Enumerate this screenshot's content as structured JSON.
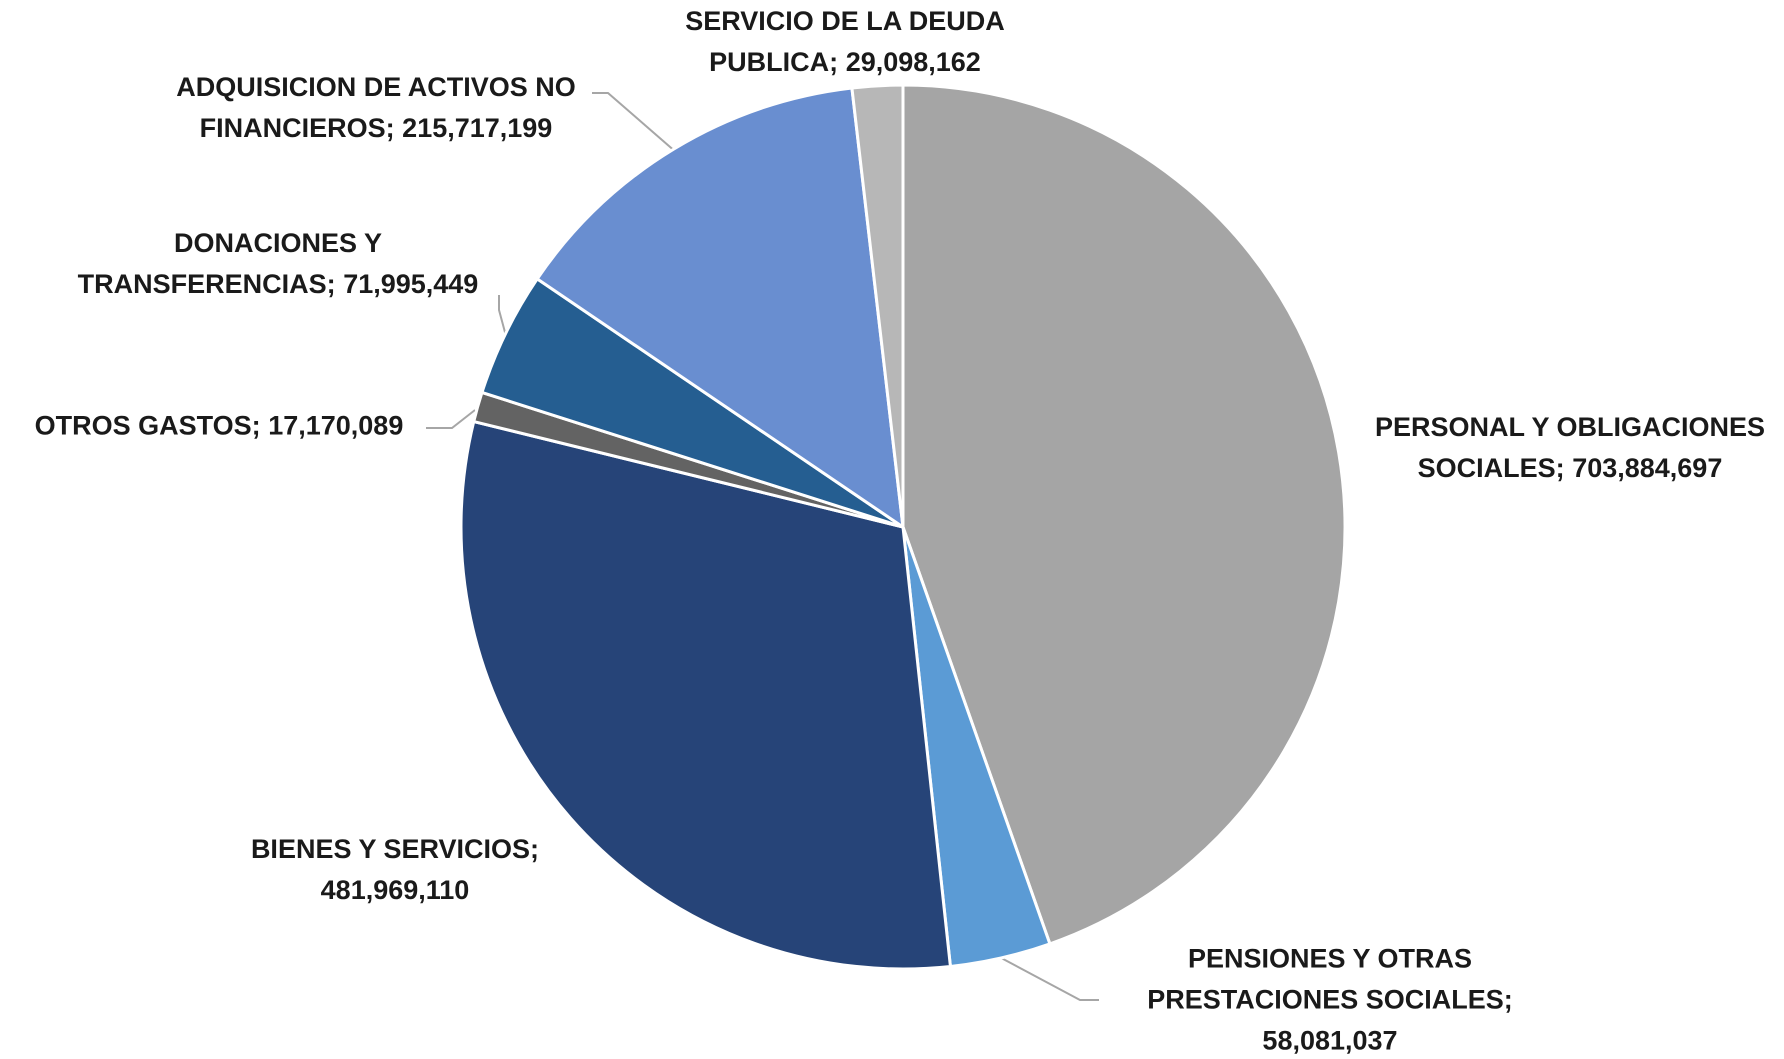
{
  "chart_data": {
    "type": "pie",
    "categories": [
      "PERSONAL Y OBLIGACIONES SOCIALES;",
      "PENSIONES Y OTRAS PRESTACIONES SOCIALES;",
      "BIENES Y SERVICIOS;",
      "OTROS GASTOS;",
      "DONACIONES Y TRANSFERENCIAS;",
      "ADQUISICION DE ACTIVOS NO FINANCIEROS;",
      "SERVICIO DE LA DEUDA PUBLICA;"
    ],
    "values": [
      703884697,
      58081037,
      481969110,
      17170089,
      71995449,
      215717199,
      29098162
    ],
    "value_labels": [
      "703,884,697",
      "58,081,037",
      "481,969,110",
      "17,170,089",
      "71,995,449",
      "215,717,199",
      "29,098,162"
    ],
    "colors": [
      "#a5a5a5",
      "#5b9bd5",
      "#264478",
      "#636363",
      "#255e91",
      "#698ed0",
      "#b7b7b7"
    ]
  }
}
